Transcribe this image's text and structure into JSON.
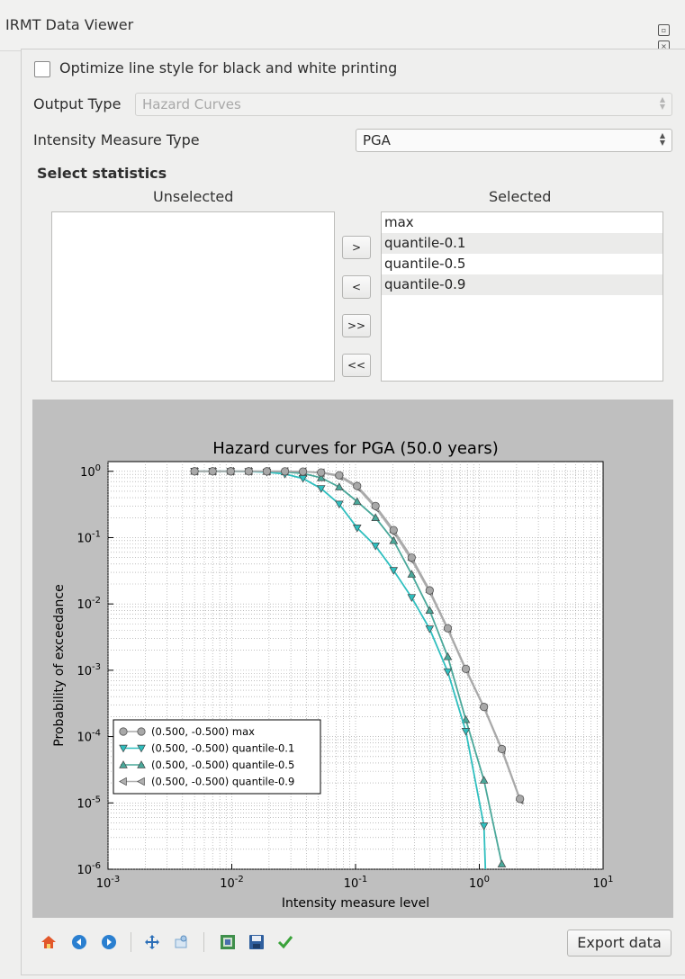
{
  "window": {
    "title": "IRMT Data Viewer"
  },
  "options": {
    "bw_label": "Optimize line style for black and white printing",
    "bw_checked": false,
    "output_type_label": "Output Type",
    "output_type_value": "Hazard Curves",
    "imt_label": "Intensity Measure Type",
    "imt_value": "PGA"
  },
  "statistics": {
    "section_title": "Select statistics",
    "unselected_header": "Unselected",
    "selected_header": "Selected",
    "unselected_items": [],
    "selected_items": [
      "max",
      "quantile-0.1",
      "quantile-0.5",
      "quantile-0.9"
    ],
    "move_buttons": [
      ">",
      "<",
      ">>",
      "<<"
    ]
  },
  "toolbar": {
    "icons": [
      "home-icon",
      "back-icon",
      "forward-icon",
      "pan-icon",
      "zoom-icon",
      "configure-subplots-icon",
      "save-icon",
      "check-icon"
    ],
    "export_label": "Export data"
  },
  "chart_data": {
    "type": "line",
    "title": "Hazard curves for PGA (50.0 years)",
    "xlabel": "Intensity measure level",
    "ylabel": "Probability of exceedance",
    "xscale": "log",
    "yscale": "log",
    "xlim": [
      0.001,
      10
    ],
    "ylim": [
      1e-06,
      1.4
    ],
    "x_ticks": [
      "10-3",
      "10-2",
      "10-1",
      "100",
      "101"
    ],
    "y_ticks": [
      "100",
      "10-1",
      "10-2",
      "10-3",
      "10-4",
      "10-5",
      "10-6"
    ],
    "grid": true,
    "legend_position": "lower-left",
    "series": [
      {
        "name": "(0.500, -0.500) max",
        "color": "#a8a8a8",
        "marker": "circle",
        "x": [
          0.005,
          0.007,
          0.0098,
          0.0137,
          0.0192,
          0.0269,
          0.0376,
          0.0527,
          0.0738,
          0.103,
          0.145,
          0.203,
          0.284,
          0.397,
          0.556,
          0.778,
          1.09,
          1.52,
          2.13
        ],
        "y": [
          1,
          1,
          1,
          1,
          1,
          0.999,
          0.99,
          0.96,
          0.87,
          0.6,
          0.3,
          0.13,
          0.05,
          0.016,
          0.0043,
          0.00105,
          0.00028,
          6.5e-05,
          1.15e-05
        ]
      },
      {
        "name": "(0.500, -0.500) quantile-0.1",
        "color": "#2fbfbf",
        "marker": "triangle-down",
        "x": [
          0.005,
          0.007,
          0.0098,
          0.0137,
          0.0192,
          0.0269,
          0.0376,
          0.0527,
          0.0738,
          0.103,
          0.145,
          0.203,
          0.284,
          0.397,
          0.556,
          0.778,
          1.09,
          1.12
        ],
        "y": [
          1,
          1,
          0.999,
          0.995,
          0.97,
          0.91,
          0.78,
          0.55,
          0.32,
          0.14,
          0.075,
          0.032,
          0.0125,
          0.0042,
          0.00095,
          0.00012,
          4.5e-06,
          1e-06
        ]
      },
      {
        "name": "(0.500, -0.500) quantile-0.5",
        "color": "#4aa89a",
        "marker": "triangle-up",
        "x": [
          0.005,
          0.007,
          0.0098,
          0.0137,
          0.0192,
          0.0269,
          0.0376,
          0.0527,
          0.0738,
          0.103,
          0.145,
          0.203,
          0.284,
          0.397,
          0.556,
          0.778,
          1.09,
          1.52
        ],
        "y": [
          1,
          1,
          1,
          1,
          0.995,
          0.98,
          0.93,
          0.8,
          0.58,
          0.35,
          0.2,
          0.09,
          0.028,
          0.008,
          0.0016,
          0.00018,
          2.2e-05,
          1.2e-06
        ]
      },
      {
        "name": "(0.500, -0.500) quantile-0.9",
        "color": "#b0b0b0",
        "marker": "triangle-left",
        "x": [
          0.005,
          0.007,
          0.0098,
          0.0137,
          0.0192,
          0.0269,
          0.0376,
          0.0527,
          0.0738,
          0.103,
          0.145,
          0.203,
          0.284,
          0.397,
          0.556,
          0.778,
          1.09,
          1.52,
          2.13
        ],
        "y": [
          1,
          1,
          1,
          1,
          1,
          0.999,
          0.99,
          0.95,
          0.84,
          0.57,
          0.28,
          0.12,
          0.046,
          0.015,
          0.0041,
          0.001,
          0.00027,
          6.2e-05,
          1.1e-05
        ]
      }
    ]
  }
}
